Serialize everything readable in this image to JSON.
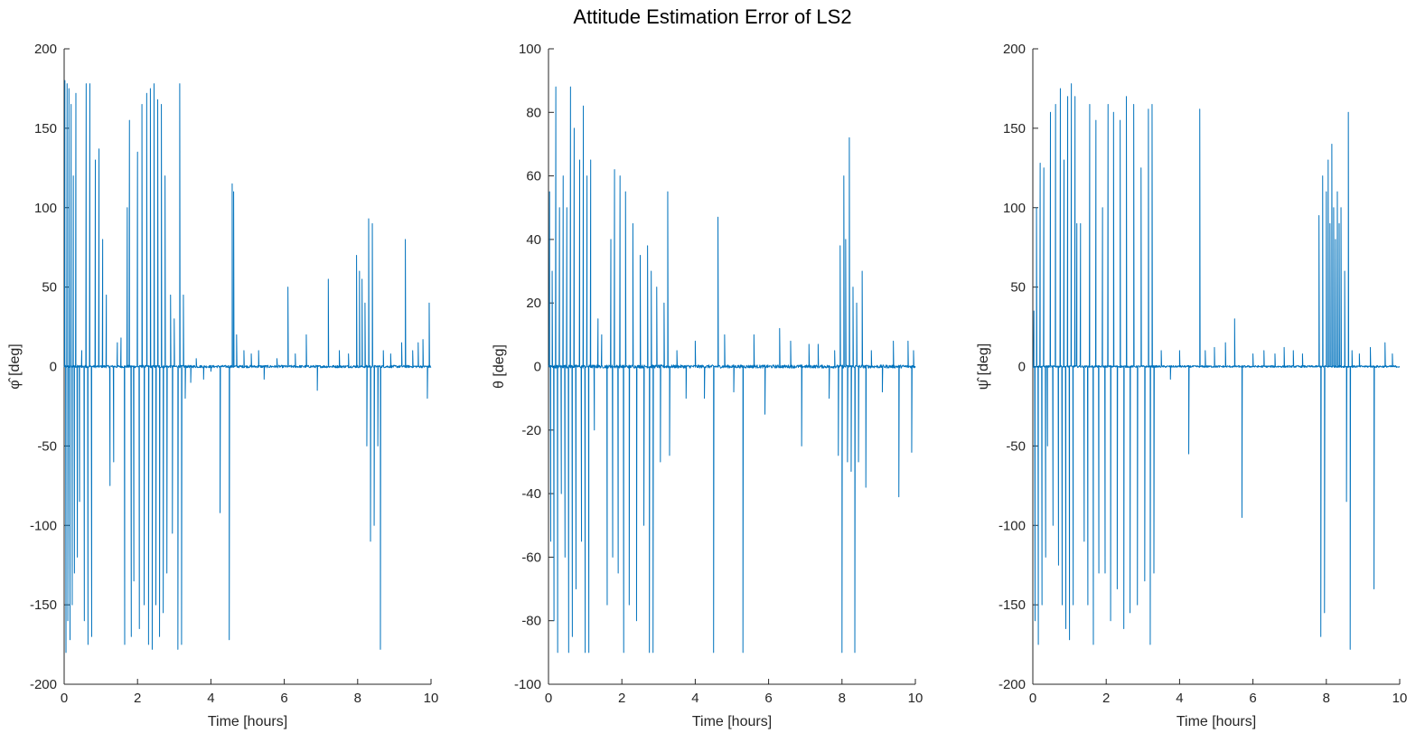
{
  "title": "Attitude Estimation Error of LS2",
  "line_color": "#0072BD",
  "chart_data": [
    {
      "type": "line",
      "title": "",
      "xlabel": "Time [hours]",
      "ylabel": "φ̂ [deg]",
      "xlim": [
        0,
        10
      ],
      "ylim": [
        -200,
        200
      ],
      "xticks": [
        "0",
        "2",
        "4",
        "6",
        "8",
        "10"
      ],
      "yticks": [
        "-200",
        "-150",
        "-100",
        "-50",
        "0",
        "50",
        "100",
        "150",
        "200"
      ],
      "grid": false,
      "series": [
        {
          "baseline": 0,
          "noise": 0.8,
          "spikes": [
            [
              0.02,
              180
            ],
            [
              0.05,
              -180
            ],
            [
              0.08,
              178
            ],
            [
              0.1,
              -160
            ],
            [
              0.13,
              175
            ],
            [
              0.16,
              -172
            ],
            [
              0.19,
              165
            ],
            [
              0.22,
              -150
            ],
            [
              0.25,
              120
            ],
            [
              0.28,
              -130
            ],
            [
              0.32,
              172
            ],
            [
              0.36,
              -120
            ],
            [
              0.42,
              -85
            ],
            [
              0.48,
              10
            ],
            [
              0.55,
              -160
            ],
            [
              0.6,
              178
            ],
            [
              0.65,
              -175
            ],
            [
              0.7,
              178
            ],
            [
              0.75,
              -170
            ],
            [
              0.85,
              130
            ],
            [
              0.95,
              137
            ],
            [
              1.05,
              80
            ],
            [
              1.15,
              45
            ],
            [
              1.25,
              -75
            ],
            [
              1.35,
              -60
            ],
            [
              1.45,
              15
            ],
            [
              1.55,
              18
            ],
            [
              1.65,
              -175
            ],
            [
              1.72,
              100
            ],
            [
              1.78,
              155
            ],
            [
              1.83,
              -170
            ],
            [
              1.9,
              -135
            ],
            [
              2.0,
              135
            ],
            [
              2.05,
              -165
            ],
            [
              2.12,
              165
            ],
            [
              2.18,
              -150
            ],
            [
              2.25,
              172
            ],
            [
              2.3,
              -175
            ],
            [
              2.35,
              175
            ],
            [
              2.4,
              -178
            ],
            [
              2.45,
              178
            ],
            [
              2.5,
              -150
            ],
            [
              2.55,
              168
            ],
            [
              2.6,
              -170
            ],
            [
              2.65,
              165
            ],
            [
              2.7,
              -155
            ],
            [
              2.75,
              120
            ],
            [
              2.8,
              -130
            ],
            [
              2.9,
              45
            ],
            [
              2.95,
              -105
            ],
            [
              3.0,
              30
            ],
            [
              3.1,
              -178
            ],
            [
              3.15,
              178
            ],
            [
              3.2,
              -175
            ],
            [
              3.25,
              45
            ],
            [
              3.3,
              -20
            ],
            [
              3.45,
              -10
            ],
            [
              3.6,
              5
            ],
            [
              3.8,
              -8
            ],
            [
              4.0,
              -3
            ],
            [
              4.25,
              -92
            ],
            [
              4.5,
              -172
            ],
            [
              4.58,
              115
            ],
            [
              4.62,
              110
            ],
            [
              4.7,
              20
            ],
            [
              4.9,
              10
            ],
            [
              5.1,
              8
            ],
            [
              5.3,
              10
            ],
            [
              5.45,
              -8
            ],
            [
              5.8,
              5
            ],
            [
              6.1,
              50
            ],
            [
              6.3,
              8
            ],
            [
              6.6,
              20
            ],
            [
              6.9,
              -15
            ],
            [
              7.2,
              55
            ],
            [
              7.5,
              10
            ],
            [
              7.75,
              8
            ],
            [
              7.97,
              70
            ],
            [
              8.05,
              60
            ],
            [
              8.12,
              55
            ],
            [
              8.2,
              40
            ],
            [
              8.25,
              -50
            ],
            [
              8.3,
              93
            ],
            [
              8.35,
              -110
            ],
            [
              8.4,
              90
            ],
            [
              8.45,
              -100
            ],
            [
              8.55,
              -50
            ],
            [
              8.62,
              -178
            ],
            [
              8.7,
              10
            ],
            [
              8.9,
              8
            ],
            [
              9.2,
              15
            ],
            [
              9.3,
              80
            ],
            [
              9.5,
              10
            ],
            [
              9.65,
              15
            ],
            [
              9.78,
              17
            ],
            [
              9.9,
              -20
            ],
            [
              9.95,
              40
            ]
          ]
        }
      ]
    },
    {
      "type": "line",
      "title": "",
      "xlabel": "Time [hours]",
      "ylabel": "θ [deg]",
      "xlim": [
        0,
        10
      ],
      "ylim": [
        -100,
        100
      ],
      "xticks": [
        "0",
        "2",
        "4",
        "6",
        "8",
        "10"
      ],
      "yticks": [
        "-100",
        "-80",
        "-60",
        "-40",
        "-20",
        "0",
        "20",
        "40",
        "60",
        "80",
        "100"
      ],
      "grid": false,
      "series": [
        {
          "baseline": 0,
          "noise": 0.5,
          "spikes": [
            [
              0.03,
              55
            ],
            [
              0.06,
              -55
            ],
            [
              0.1,
              30
            ],
            [
              0.15,
              -80
            ],
            [
              0.2,
              88
            ],
            [
              0.25,
              -90
            ],
            [
              0.3,
              50
            ],
            [
              0.35,
              -40
            ],
            [
              0.4,
              60
            ],
            [
              0.45,
              -60
            ],
            [
              0.5,
              50
            ],
            [
              0.55,
              -90
            ],
            [
              0.6,
              88
            ],
            [
              0.65,
              -85
            ],
            [
              0.7,
              75
            ],
            [
              0.75,
              -70
            ],
            [
              0.85,
              65
            ],
            [
              0.9,
              -55
            ],
            [
              0.95,
              82
            ],
            [
              1.0,
              -90
            ],
            [
              1.05,
              60
            ],
            [
              1.1,
              -90
            ],
            [
              1.15,
              65
            ],
            [
              1.25,
              -20
            ],
            [
              1.35,
              15
            ],
            [
              1.45,
              10
            ],
            [
              1.6,
              -75
            ],
            [
              1.7,
              40
            ],
            [
              1.75,
              -60
            ],
            [
              1.8,
              62
            ],
            [
              1.9,
              -65
            ],
            [
              1.95,
              60
            ],
            [
              2.05,
              -90
            ],
            [
              2.1,
              55
            ],
            [
              2.2,
              -75
            ],
            [
              2.3,
              45
            ],
            [
              2.4,
              -80
            ],
            [
              2.5,
              35
            ],
            [
              2.6,
              -50
            ],
            [
              2.7,
              38
            ],
            [
              2.75,
              -90
            ],
            [
              2.8,
              30
            ],
            [
              2.85,
              -90
            ],
            [
              2.95,
              25
            ],
            [
              3.05,
              -30
            ],
            [
              3.15,
              20
            ],
            [
              3.25,
              55
            ],
            [
              3.3,
              -28
            ],
            [
              3.5,
              5
            ],
            [
              3.75,
              -10
            ],
            [
              4.0,
              8
            ],
            [
              4.25,
              -10
            ],
            [
              4.5,
              -90
            ],
            [
              4.62,
              47
            ],
            [
              4.8,
              10
            ],
            [
              5.05,
              -8
            ],
            [
              5.3,
              -90
            ],
            [
              5.6,
              10
            ],
            [
              5.9,
              -15
            ],
            [
              6.3,
              12
            ],
            [
              6.6,
              8
            ],
            [
              6.9,
              -25
            ],
            [
              7.1,
              7
            ],
            [
              7.35,
              7
            ],
            [
              7.65,
              -10
            ],
            [
              7.8,
              5
            ],
            [
              7.9,
              -28
            ],
            [
              7.95,
              38
            ],
            [
              8.0,
              -90
            ],
            [
              8.05,
              60
            ],
            [
              8.1,
              40
            ],
            [
              8.15,
              -30
            ],
            [
              8.2,
              72
            ],
            [
              8.25,
              -33
            ],
            [
              8.3,
              25
            ],
            [
              8.35,
              -90
            ],
            [
              8.4,
              20
            ],
            [
              8.45,
              -30
            ],
            [
              8.55,
              30
            ],
            [
              8.65,
              -38
            ],
            [
              8.8,
              5
            ],
            [
              9.1,
              -8
            ],
            [
              9.4,
              8
            ],
            [
              9.55,
              -41
            ],
            [
              9.8,
              8
            ],
            [
              9.9,
              -27
            ],
            [
              9.95,
              5
            ]
          ]
        }
      ]
    },
    {
      "type": "line",
      "title": "",
      "xlabel": "Time [hours]",
      "ylabel": "ψ̂ [deg]",
      "xlim": [
        0,
        10
      ],
      "ylim": [
        -200,
        200
      ],
      "xticks": [
        "0",
        "2",
        "4",
        "6",
        "8",
        "10"
      ],
      "yticks": [
        "-200",
        "-150",
        "-100",
        "-50",
        "0",
        "50",
        "100",
        "150",
        "200"
      ],
      "grid": false,
      "series": [
        {
          "baseline": 0,
          "noise": 0.6,
          "spikes": [
            [
              0.03,
              35
            ],
            [
              0.06,
              -160
            ],
            [
              0.1,
              100
            ],
            [
              0.15,
              -175
            ],
            [
              0.2,
              128
            ],
            [
              0.25,
              -150
            ],
            [
              0.3,
              125
            ],
            [
              0.35,
              -120
            ],
            [
              0.4,
              -50
            ],
            [
              0.48,
              160
            ],
            [
              0.55,
              -100
            ],
            [
              0.62,
              165
            ],
            [
              0.7,
              -125
            ],
            [
              0.75,
              175
            ],
            [
              0.8,
              -150
            ],
            [
              0.85,
              130
            ],
            [
              0.9,
              -165
            ],
            [
              0.95,
              170
            ],
            [
              1.0,
              -172
            ],
            [
              1.05,
              178
            ],
            [
              1.1,
              -150
            ],
            [
              1.15,
              170
            ],
            [
              1.2,
              90
            ],
            [
              1.3,
              90
            ],
            [
              1.4,
              -110
            ],
            [
              1.5,
              -150
            ],
            [
              1.55,
              165
            ],
            [
              1.65,
              -175
            ],
            [
              1.72,
              155
            ],
            [
              1.8,
              -130
            ],
            [
              1.9,
              100
            ],
            [
              1.97,
              -130
            ],
            [
              2.05,
              165
            ],
            [
              2.12,
              -160
            ],
            [
              2.2,
              160
            ],
            [
              2.3,
              -140
            ],
            [
              2.38,
              155
            ],
            [
              2.48,
              -165
            ],
            [
              2.55,
              170
            ],
            [
              2.65,
              -155
            ],
            [
              2.75,
              165
            ],
            [
              2.85,
              -150
            ],
            [
              2.95,
              125
            ],
            [
              3.05,
              -135
            ],
            [
              3.15,
              162
            ],
            [
              3.2,
              -175
            ],
            [
              3.25,
              165
            ],
            [
              3.3,
              -130
            ],
            [
              3.5,
              10
            ],
            [
              3.75,
              -8
            ],
            [
              4.0,
              10
            ],
            [
              4.25,
              -55
            ],
            [
              4.55,
              162
            ],
            [
              4.7,
              10
            ],
            [
              4.95,
              12
            ],
            [
              5.25,
              15
            ],
            [
              5.5,
              30
            ],
            [
              5.7,
              -95
            ],
            [
              6.0,
              8
            ],
            [
              6.3,
              10
            ],
            [
              6.6,
              8
            ],
            [
              6.85,
              12
            ],
            [
              7.1,
              10
            ],
            [
              7.35,
              8
            ],
            [
              7.8,
              95
            ],
            [
              7.85,
              -170
            ],
            [
              7.9,
              120
            ],
            [
              7.95,
              -155
            ],
            [
              8.0,
              110
            ],
            [
              8.05,
              130
            ],
            [
              8.1,
              90
            ],
            [
              8.15,
              140
            ],
            [
              8.2,
              100
            ],
            [
              8.25,
              80
            ],
            [
              8.3,
              110
            ],
            [
              8.35,
              90
            ],
            [
              8.4,
              100
            ],
            [
              8.5,
              60
            ],
            [
              8.55,
              -85
            ],
            [
              8.6,
              160
            ],
            [
              8.65,
              -178
            ],
            [
              8.7,
              10
            ],
            [
              8.9,
              8
            ],
            [
              9.2,
              12
            ],
            [
              9.3,
              -140
            ],
            [
              9.6,
              15
            ],
            [
              9.8,
              8
            ]
          ]
        }
      ]
    }
  ]
}
